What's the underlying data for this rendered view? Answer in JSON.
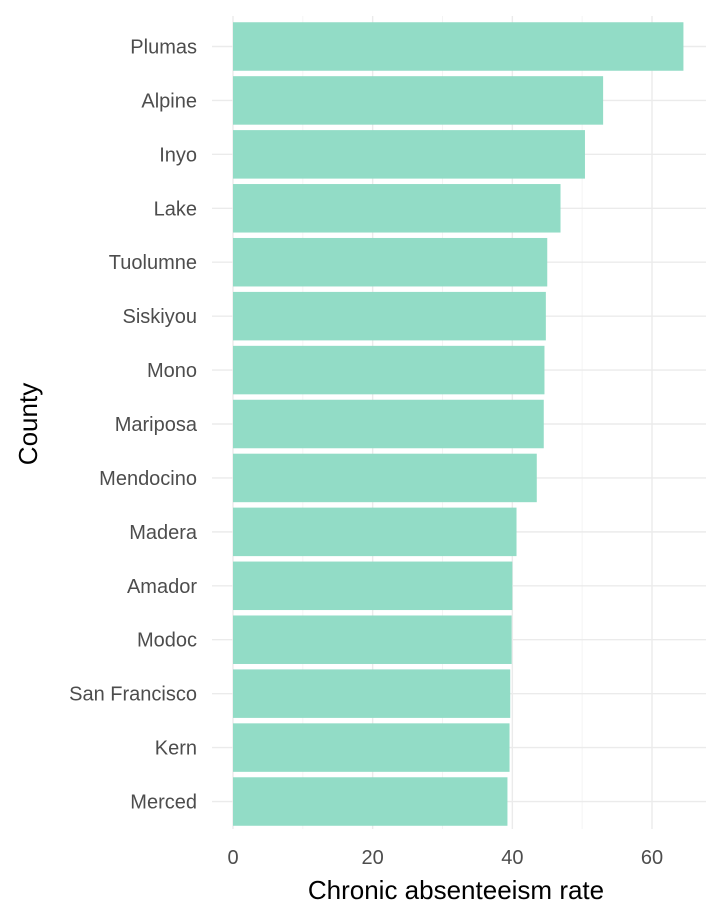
{
  "chart_data": {
    "type": "bar",
    "orientation": "horizontal",
    "categories": [
      "Plumas",
      "Alpine",
      "Inyo",
      "Lake",
      "Tuolumne",
      "Siskiyou",
      "Mono",
      "Mariposa",
      "Mendocino",
      "Madera",
      "Amador",
      "Modoc",
      "San Francisco",
      "Kern",
      "Merced"
    ],
    "values": [
      64.5,
      53.0,
      50.4,
      46.9,
      45.0,
      44.8,
      44.6,
      44.5,
      43.5,
      40.6,
      40.0,
      39.9,
      39.7,
      39.6,
      39.3
    ],
    "xlabel": "Chronic absenteeism rate",
    "ylabel": "County",
    "xlim": [
      0,
      67
    ],
    "xticks": [
      0,
      20,
      40,
      60
    ],
    "grid": true,
    "colors": {
      "bar": "#92dcc6",
      "grid_major": "#ebebeb",
      "grid_minor": "#f4f4f4"
    }
  }
}
